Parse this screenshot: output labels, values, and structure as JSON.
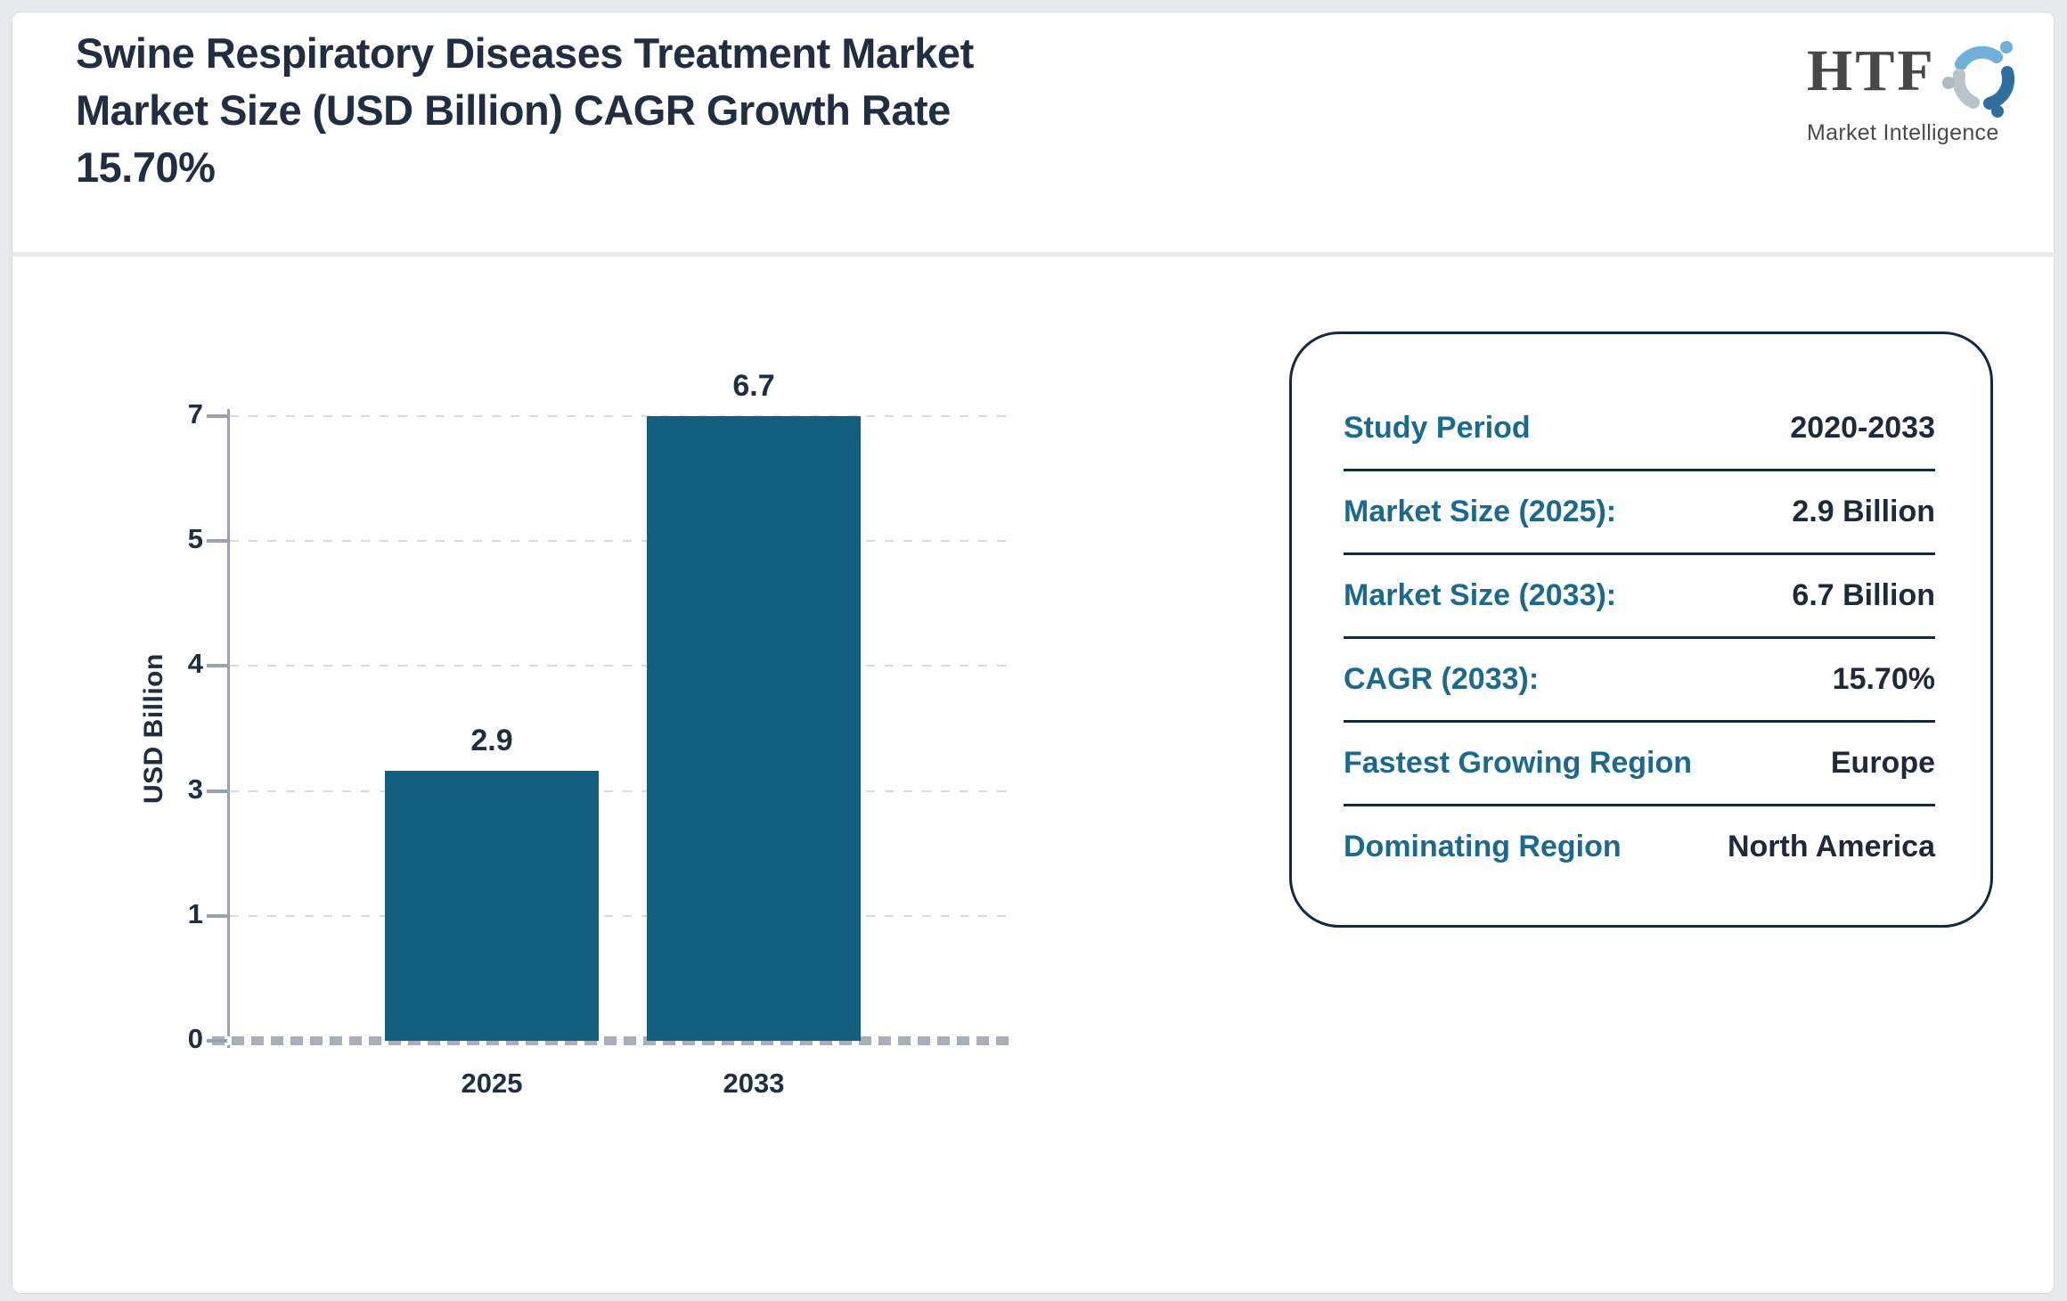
{
  "header": {
    "title_lines": [
      "Swine Respiratory Diseases Treatment Market",
      "Market Size (USD Billion) CAGR Growth Rate",
      "15.70%"
    ],
    "logo": {
      "name": "HTF",
      "tagline": "Market Intelligence"
    }
  },
  "chart_data": {
    "type": "bar",
    "title": "Swine Respiratory Diseases Treatment Market Market Size (USD Billion) CAGR Growth Rate 15.70%",
    "categories": [
      "2025",
      "2033"
    ],
    "values": [
      2.9,
      6.7
    ],
    "data_labels": [
      "2.9",
      "6.7"
    ],
    "xlabel": "",
    "ylabel": "USD Billion",
    "yticks": [
      0,
      1,
      3,
      4,
      5,
      7
    ],
    "ylim": [
      0,
      7
    ],
    "grid": "horizontal-dashed",
    "legend": "none",
    "bar_color": "#115e80"
  },
  "info_card": {
    "rows": [
      {
        "label": "Study Period",
        "value": "2020-2033"
      },
      {
        "label": "Market Size (2025):",
        "value": "2.9 Billion"
      },
      {
        "label": "Market Size (2033):",
        "value": "6.7 Billion"
      },
      {
        "label": "CAGR (2033):",
        "value": "15.70%"
      },
      {
        "label": "Fastest Growing Region",
        "value": "Europe"
      },
      {
        "label": "Dominating Region",
        "value": "North America"
      }
    ]
  },
  "colors": {
    "bar": "#115e80",
    "label_teal": "#1b6a8e",
    "navy": "#212d40",
    "axis_gray": "#9aa3ad",
    "background": "#e7e9ed"
  }
}
